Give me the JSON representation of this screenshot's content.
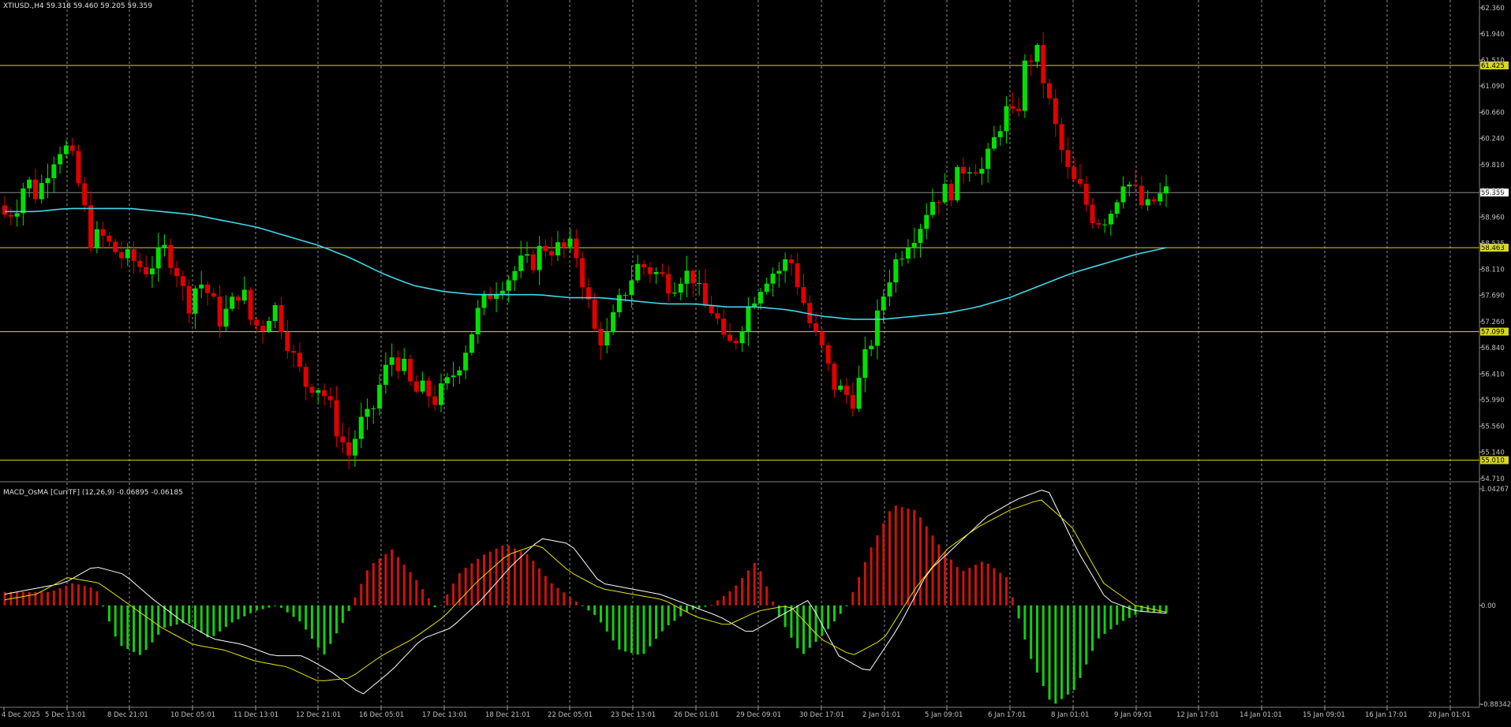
{
  "colors": {
    "background": "#000000",
    "bull": "#00e000",
    "bear": "#e00000",
    "ma": "#3fd8e8",
    "hline": "#d8d820",
    "grid": "#c8c8c8",
    "axis_text": "#c0c0c0",
    "macd_line": "#ffffff",
    "signal_line": "#e6e600",
    "price_line": "#8c8c8c"
  },
  "header": {
    "symbol_info": "XTIUSD.,H4  59.318 59.460 59.205 59.359"
  },
  "chart_data": [
    {
      "type": "candlestick",
      "symbol": "XTIUSD.",
      "timeframe": "H4",
      "ohlc_header": {
        "open": 59.318,
        "high": 59.46,
        "low": 59.205,
        "close": 59.359
      },
      "ylim": [
        54.71,
        62.36
      ],
      "y_ticks": [
        "62.360",
        "61.940",
        "61.510",
        "61.090",
        "60.660",
        "60.240",
        "59.810",
        "59.385",
        "58.960",
        "58.535",
        "58.110",
        "57.690",
        "57.260",
        "56.840",
        "56.410",
        "55.990",
        "55.560",
        "55.140",
        "54.710"
      ],
      "x_tick_labels": [
        "4 Dec 2025",
        "5 Dec 13:01",
        "8 Dec 21:01",
        "10 Dec 05:01",
        "11 Dec 13:01",
        "12 Dec 21:01",
        "16 Dec 05:01",
        "17 Dec 13:01",
        "18 Dec 21:01",
        "22 Dec 05:01",
        "23 Dec 13:01",
        "26 Dec 01:01",
        "29 Dec 09:01",
        "30 Dec 17:01",
        "2 Jan 01:01",
        "5 Jan 09:01",
        "6 Jan 17:01",
        "8 Jan 01:01",
        "9 Jan 09:01",
        "12 Jan 17:01",
        "14 Jan 01:01",
        "15 Jan 09:01",
        "16 Jan 17:01",
        "20 Jan 01:01"
      ],
      "horizontal_lines": [
        {
          "value": 61.425,
          "label": "61.425"
        },
        {
          "value": 58.463,
          "label": "58.463"
        },
        {
          "value": 57.099,
          "label": "57.099"
        },
        {
          "value": 55.01,
          "label": "55.010"
        }
      ],
      "current_price": {
        "value": 59.359,
        "label": "59.359"
      },
      "close_path": [
        59.0,
        59.1,
        59.6,
        59.3,
        59.75,
        60.1,
        60.05,
        59.4,
        58.6,
        58.65,
        58.45,
        58.3,
        58.25,
        58.1,
        58.25,
        58.45,
        58.1,
        57.5,
        57.95,
        57.7,
        57.3,
        57.5,
        57.85,
        57.2,
        57.2,
        57.55,
        57.1,
        56.6,
        56.25,
        56.25,
        56.0,
        55.45,
        55.1,
        55.6,
        55.7,
        56.3,
        56.7,
        56.55,
        56.1,
        56.15,
        56.0,
        56.2,
        56.5,
        56.9,
        57.4,
        57.7,
        57.9,
        58.0,
        58.2,
        58.2,
        58.5,
        58.45,
        58.45,
        58.45,
        57.75,
        57.0,
        57.0,
        57.5,
        57.9,
        58.2,
        58.1,
        58.0,
        57.85,
        58.05,
        58.0,
        57.5,
        57.45,
        56.8,
        57.0,
        57.45,
        57.8,
        58.05,
        58.1,
        58.3,
        57.75,
        57.15,
        56.8,
        56.25,
        56.1,
        56.0,
        56.65,
        57.2,
        57.9,
        58.3,
        58.6,
        58.8,
        59.2,
        59.35,
        59.4,
        59.75,
        59.85,
        59.7,
        60.2,
        60.7,
        60.5,
        61.55,
        61.6,
        60.9,
        60.2,
        59.6,
        59.4,
        59.0,
        58.9,
        59.1,
        59.6,
        59.4,
        59.05,
        59.25,
        59.359
      ],
      "ma_path": [
        59.05,
        59.05,
        59.1,
        59.1,
        59.1,
        59.05,
        59.0,
        58.9,
        58.8,
        58.65,
        58.5,
        58.3,
        58.05,
        57.85,
        57.75,
        57.7,
        57.7,
        57.7,
        57.65,
        57.65,
        57.6,
        57.55,
        57.55,
        57.5,
        57.5,
        57.45,
        57.35,
        57.3,
        57.3,
        57.35,
        57.4,
        57.5,
        57.65,
        57.85,
        58.05,
        58.2,
        58.35,
        58.463
      ],
      "macd_indicator": {
        "title": "MACD_OsMA [CurrTF] (12,26,9) -0.06895 -0.06185",
        "ylim": [
          -0.88342,
          1.04267
        ],
        "y_ticks": [
          "1.04267",
          "0.00",
          "-0.88342"
        ],
        "macd_path": [
          0.1,
          0.15,
          0.2,
          0.35,
          0.28,
          0.05,
          -0.15,
          -0.3,
          -0.35,
          -0.45,
          -0.45,
          -0.6,
          -0.8,
          -0.58,
          -0.3,
          -0.2,
          0.05,
          0.35,
          0.6,
          0.55,
          0.2,
          0.15,
          0.1,
          0.0,
          -0.1,
          -0.25,
          -0.1,
          0.05,
          -0.45,
          -0.6,
          -0.2,
          0.3,
          0.55,
          0.8,
          0.95,
          1.05,
          0.5,
          0.05,
          -0.05,
          -0.07
        ],
        "signal_path": [
          0.05,
          0.1,
          0.25,
          0.2,
          0.0,
          -0.2,
          -0.35,
          -0.4,
          -0.5,
          -0.55,
          -0.68,
          -0.65,
          -0.45,
          -0.3,
          -0.1,
          0.2,
          0.45,
          0.55,
          0.3,
          0.15,
          0.1,
          0.05,
          -0.1,
          -0.18,
          -0.05,
          0.0,
          -0.3,
          -0.45,
          -0.3,
          0.15,
          0.5,
          0.7,
          0.85,
          0.95,
          0.7,
          0.2,
          0.0,
          -0.06
        ],
        "histogram": [
          0.12,
          0.12,
          0.12,
          0.2,
          0.15,
          -0.35,
          -0.45,
          -0.2,
          -0.15,
          -0.3,
          -0.15,
          -0.05,
          0.0,
          -0.15,
          -0.45,
          -0.1,
          0.35,
          0.5,
          0.25,
          -0.05,
          0.3,
          0.45,
          0.55,
          0.45,
          0.2,
          0.05,
          -0.1,
          -0.4,
          -0.45,
          -0.2,
          -0.05,
          0.0,
          0.15,
          0.4,
          -0.1,
          -0.45,
          -0.25,
          0.0,
          0.5,
          0.9,
          0.85,
          0.55,
          0.3,
          0.4,
          0.25,
          -0.45,
          -0.9,
          -0.75,
          -0.3,
          -0.15,
          -0.05,
          -0.07
        ]
      }
    }
  ]
}
